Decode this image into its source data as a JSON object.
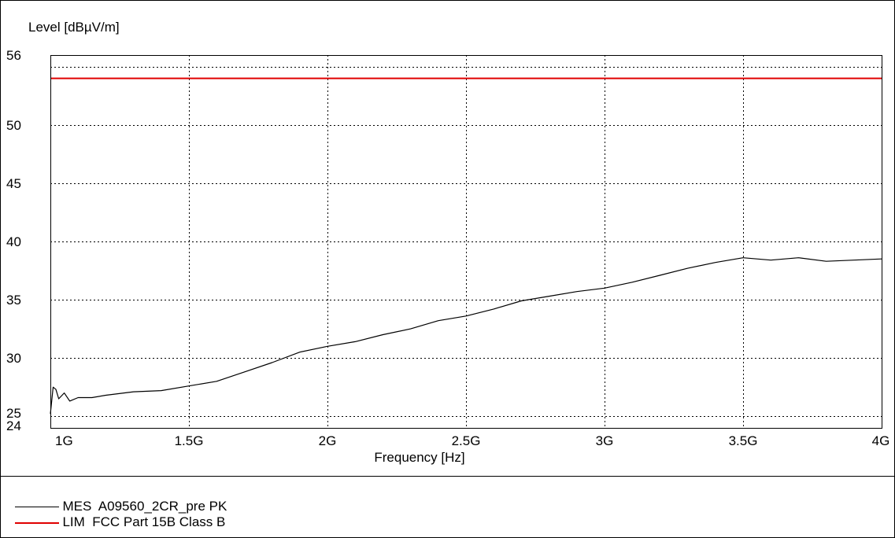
{
  "colors": {
    "measurement": "#000000",
    "limit": "#e00000",
    "grid": "#000000",
    "background": "#ffffff"
  },
  "chart_data": {
    "type": "line",
    "title": "",
    "ylabel": "Level [dBµV/m]",
    "xlabel": "Frequency [Hz]",
    "xlim": [
      1.0,
      4.0
    ],
    "ylim": [
      24,
      56
    ],
    "x_unit": "GHz",
    "xticks": [
      1.0,
      1.5,
      2.0,
      2.5,
      3.0,
      3.5,
      4.0
    ],
    "xtick_labels": [
      "1G",
      "1.5G",
      "2G",
      "2.5G",
      "3G",
      "3.5G",
      "4G"
    ],
    "yticks": [
      24,
      25,
      30,
      35,
      40,
      45,
      50,
      56
    ],
    "ytick_labels": [
      "24",
      "25",
      "30",
      "35",
      "40",
      "45",
      "50",
      "56"
    ],
    "extra_dashed_grid_y": [
      55,
      25
    ],
    "grid": true,
    "legend_position": "bottom",
    "series": [
      {
        "name": "MES  A09560_2CR_pre PK",
        "x": [
          1.0,
          1.01,
          1.02,
          1.03,
          1.05,
          1.07,
          1.1,
          1.15,
          1.2,
          1.3,
          1.4,
          1.5,
          1.6,
          1.7,
          1.8,
          1.9,
          2.0,
          2.1,
          2.2,
          2.3,
          2.4,
          2.5,
          2.6,
          2.7,
          2.8,
          2.9,
          3.0,
          3.1,
          3.2,
          3.3,
          3.4,
          3.5,
          3.6,
          3.7,
          3.8,
          3.9,
          4.0
        ],
        "values": [
          25.2,
          27.5,
          27.3,
          26.5,
          27.0,
          26.3,
          26.6,
          26.6,
          26.8,
          27.1,
          27.2,
          27.6,
          28.0,
          28.8,
          29.6,
          30.5,
          31.0,
          31.4,
          32.0,
          32.5,
          33.2,
          33.6,
          34.2,
          34.9,
          35.3,
          35.7,
          36.0,
          36.5,
          37.1,
          37.7,
          38.2,
          38.6,
          38.4,
          38.6,
          38.3,
          38.4,
          38.5
        ]
      },
      {
        "name": "LIM  FCC Part 15B Class B",
        "x": [
          1.0,
          4.0
        ],
        "values": [
          54,
          54
        ]
      }
    ]
  }
}
